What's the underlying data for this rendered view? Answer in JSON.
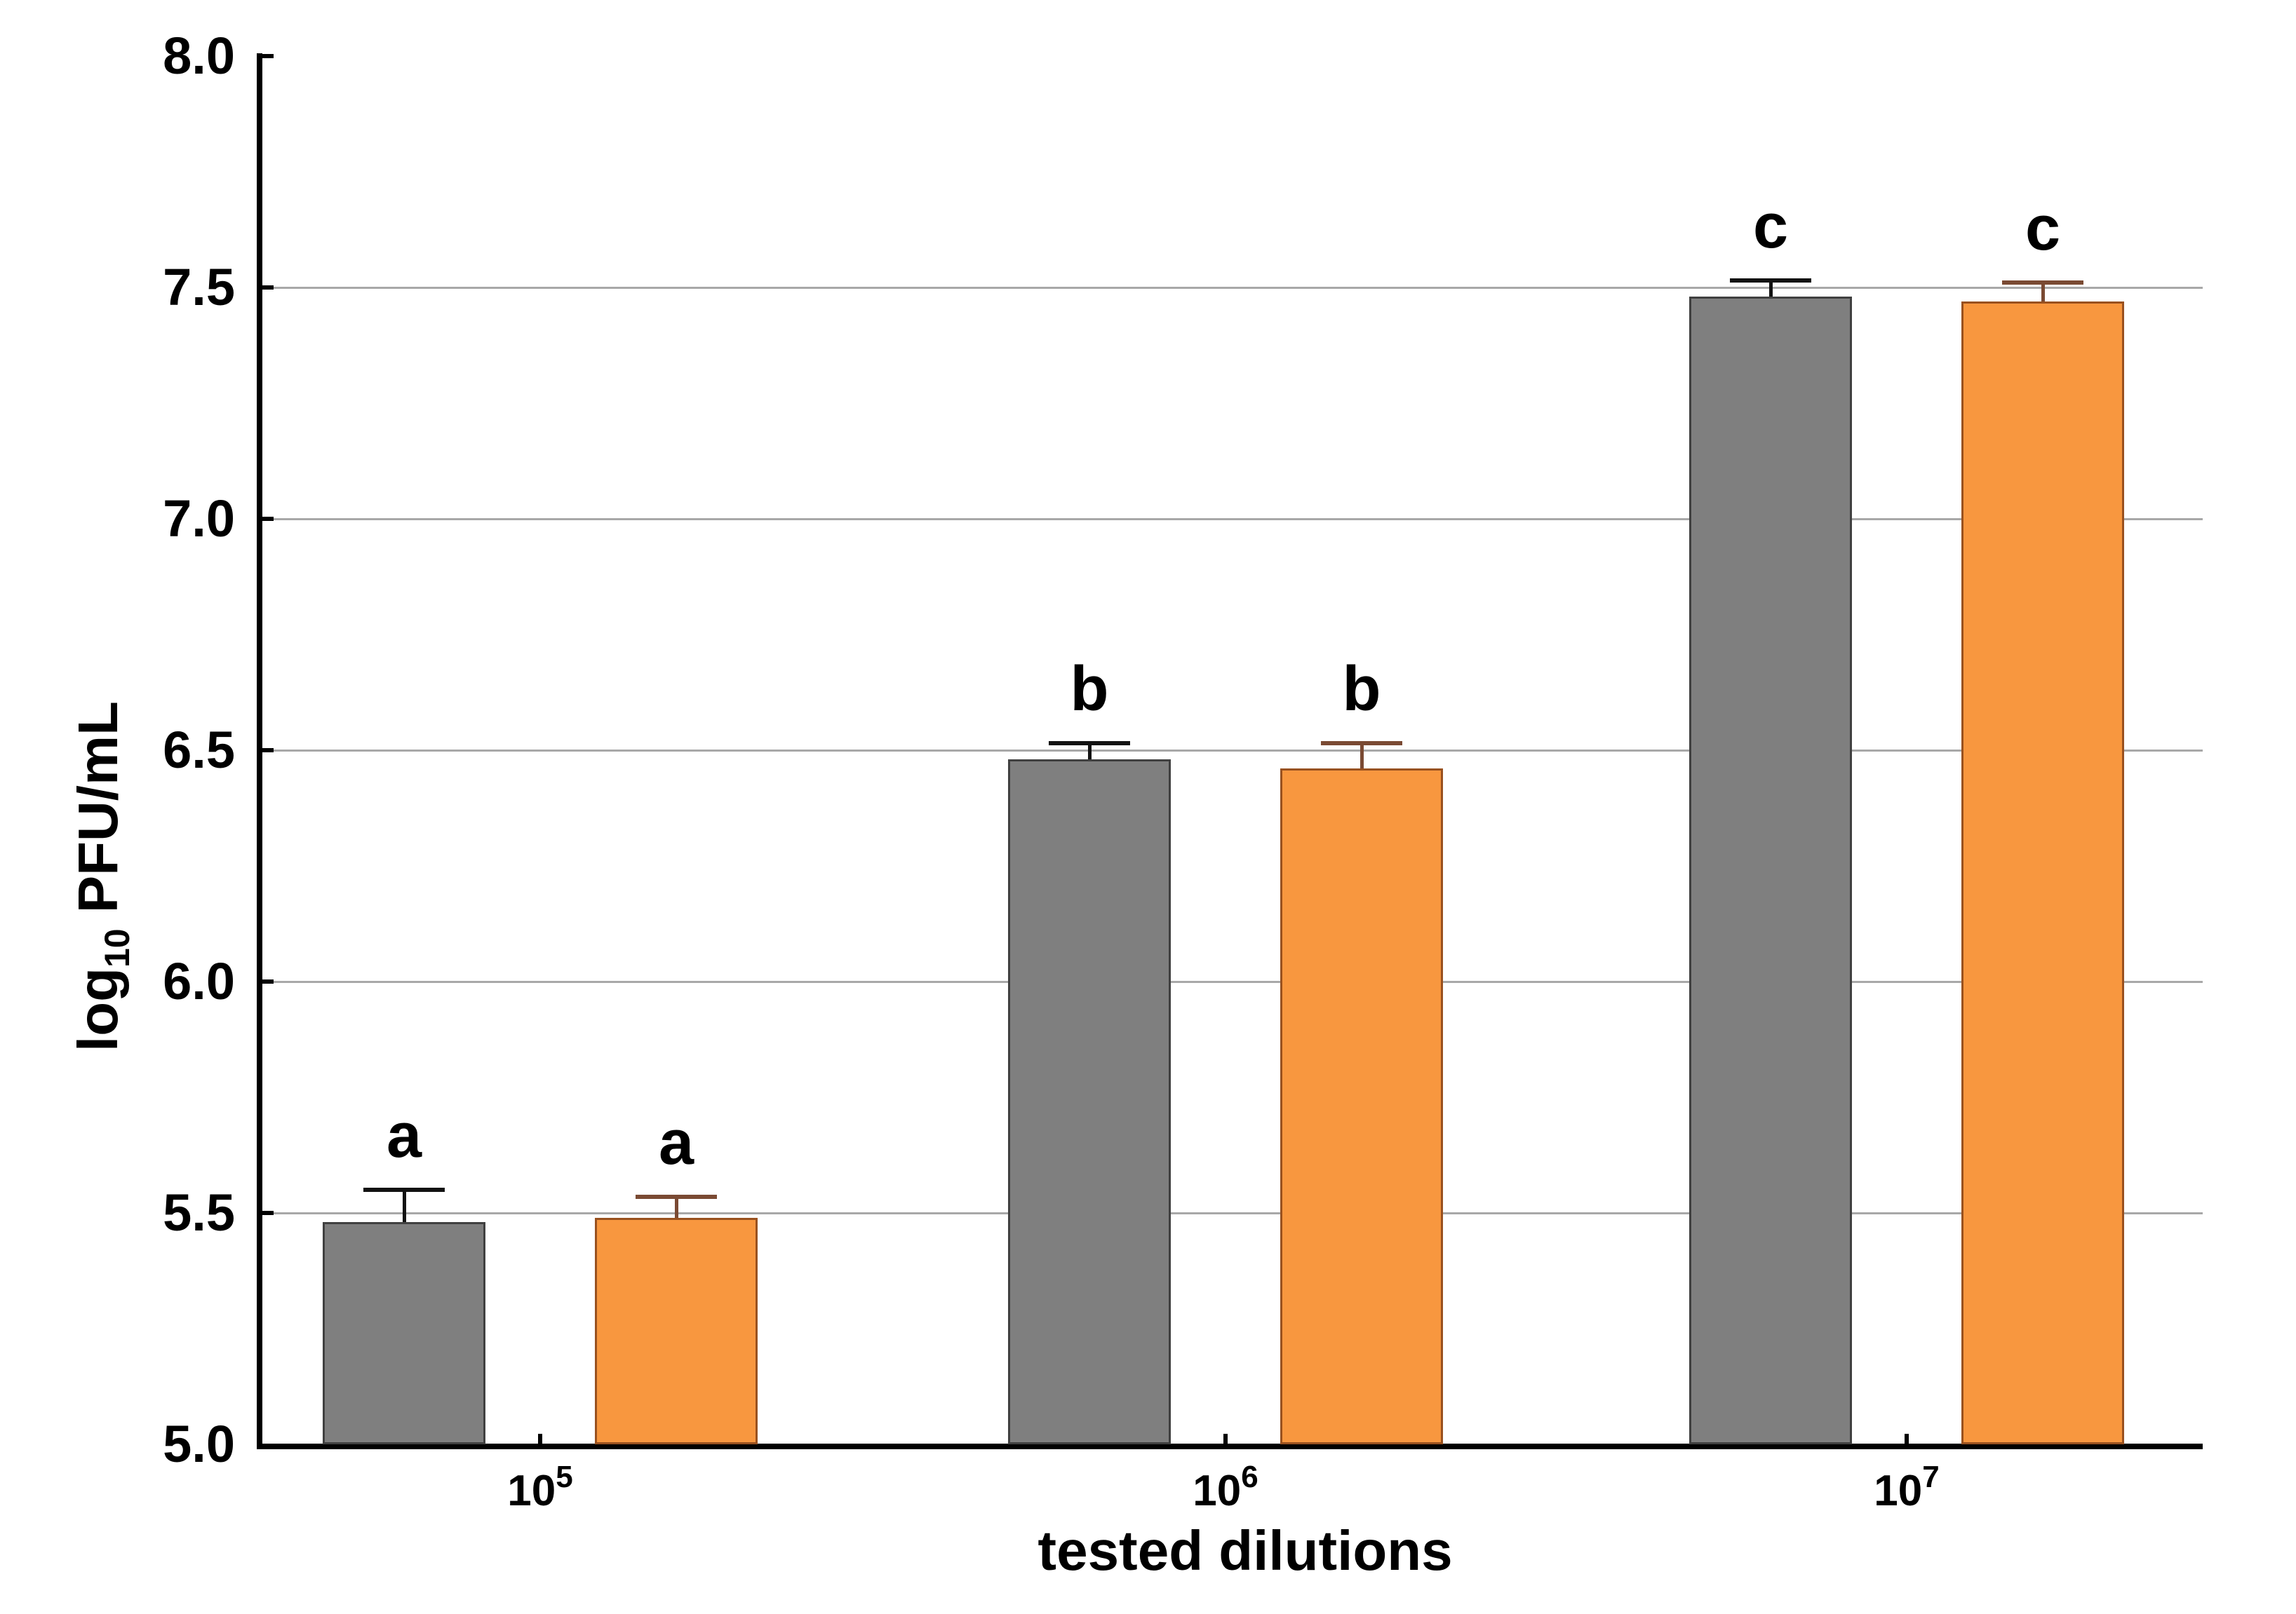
{
  "figure": {
    "xlabel": "tested dilutions",
    "ylabel_prefix": "log",
    "ylabel_sub": "10",
    "ylabel_rest": " PFU/mL"
  },
  "chart_data": {
    "type": "bar",
    "title": "",
    "xlabel": "tested dilutions",
    "ylabel": "log10 PFU/mL",
    "categories": [
      {
        "base": "10",
        "exp": "5"
      },
      {
        "base": "10",
        "exp": "6"
      },
      {
        "base": "10",
        "exp": "7"
      }
    ],
    "series": [
      {
        "name": "gray",
        "color": "#7f7f7f",
        "edge_color": "#404040",
        "error_color": "#121212",
        "values": [
          5.48,
          6.48,
          7.48
        ],
        "errors_plus": [
          0.07,
          0.035,
          0.035
        ]
      },
      {
        "name": "orange",
        "color": "#f8973f",
        "edge_color": "#99511f",
        "error_color": "#7a4a33",
        "values": [
          5.49,
          6.46,
          7.47
        ],
        "errors_plus": [
          0.045,
          0.055,
          0.04
        ]
      }
    ],
    "significance_letters": [
      "a",
      "b",
      "c"
    ],
    "ylim": [
      5.0,
      8.0
    ],
    "yticks": [
      5.0,
      5.5,
      6.0,
      6.5,
      7.0,
      7.5,
      8.0
    ],
    "grid": "horizontal",
    "legend": "none",
    "gridline_color": "#a8a8a8"
  }
}
